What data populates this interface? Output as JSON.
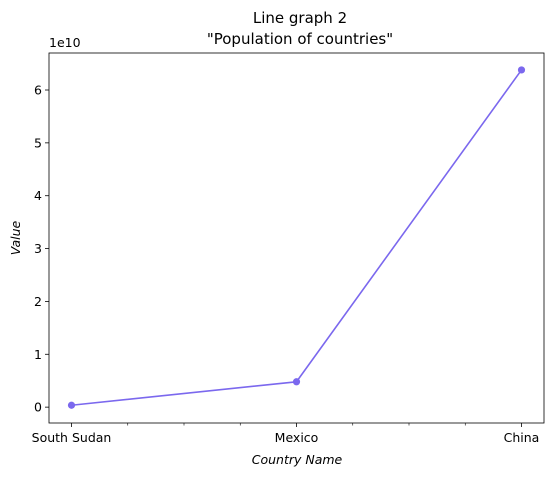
{
  "chart_data": {
    "type": "line",
    "title": "Line graph 2",
    "subtitle": "\"Population of countries\"",
    "xlabel": "Country Name",
    "ylabel": "Value",
    "y_offset_label": "1e10",
    "categories": [
      "South Sudan",
      "Mexico",
      "China"
    ],
    "series": [
      {
        "values": [
          360000000,
          4800000000,
          63800000000
        ],
        "color": "#7b68ee"
      }
    ],
    "ylim": [
      -3000000000,
      67000000000
    ],
    "y_ticks": [
      0,
      1,
      2,
      3,
      4,
      5,
      6
    ],
    "y_ticks_scale": 10000000000,
    "x_minor_ticks_between": 3,
    "grid": false,
    "legend": "none"
  }
}
